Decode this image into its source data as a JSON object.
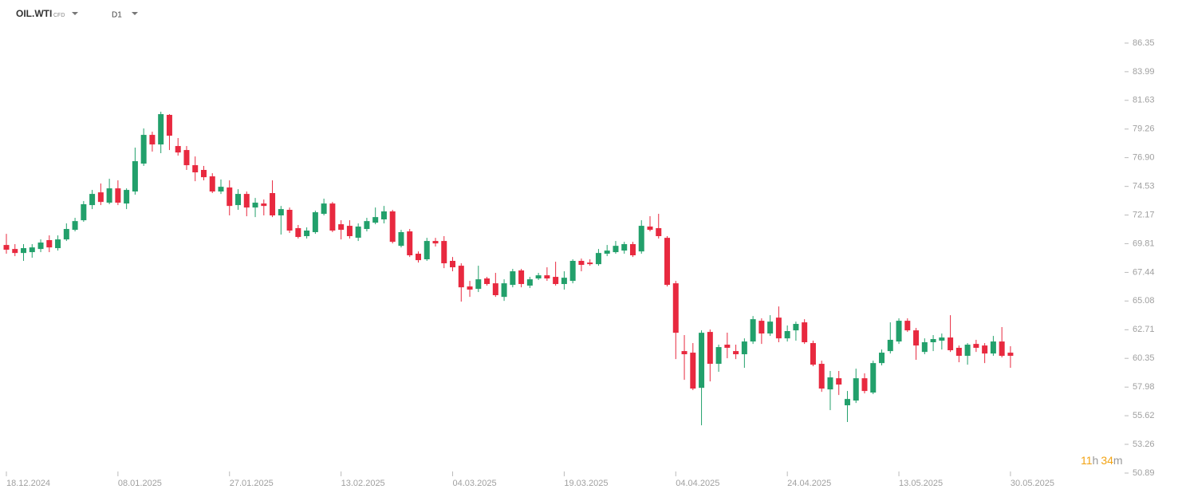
{
  "header": {
    "symbol": "OIL.WTI",
    "symbol_tag": "CFD",
    "timeframe": "D1"
  },
  "countdown": {
    "hours": "11",
    "hours_unit": "h",
    "minutes": "34",
    "minutes_unit": "m"
  },
  "chart_data": {
    "type": "candlestick",
    "up_color": "#22a06b",
    "down_color": "#e8293f",
    "ylim": [
      50.89,
      86.35
    ],
    "yticks": [
      86.35,
      83.99,
      81.63,
      79.26,
      {
        "value": 76.9,
        "label": "76.90"
      },
      74.53,
      72.17,
      69.81,
      67.44,
      65.08,
      62.71,
      60.35,
      57.98,
      55.62,
      53.26,
      50.89
    ],
    "grid": false,
    "categories": [
      "18.12.2024",
      null,
      null,
      null,
      null,
      null,
      null,
      null,
      null,
      null,
      null,
      null,
      null,
      "08.01.2025",
      null,
      null,
      null,
      null,
      null,
      null,
      null,
      null,
      null,
      null,
      null,
      null,
      "27.01.2025",
      null,
      null,
      null,
      null,
      null,
      null,
      null,
      null,
      null,
      null,
      null,
      null,
      "13.02.2025",
      null,
      null,
      null,
      null,
      null,
      null,
      null,
      null,
      null,
      null,
      null,
      null,
      "04.03.2025",
      null,
      null,
      null,
      null,
      null,
      null,
      null,
      null,
      null,
      null,
      null,
      null,
      "19.03.2025",
      null,
      null,
      null,
      null,
      null,
      null,
      null,
      null,
      null,
      null,
      null,
      null,
      "04.04.2025",
      null,
      null,
      null,
      null,
      null,
      null,
      null,
      null,
      null,
      null,
      null,
      null,
      "24.04.2025",
      null,
      null,
      null,
      null,
      null,
      null,
      null,
      null,
      null,
      null,
      null,
      null,
      "13.05.2025",
      null,
      null,
      null,
      null,
      null,
      null,
      null,
      null,
      null,
      null,
      null,
      null,
      "30.05.2025"
    ],
    "open": [
      69.7,
      69.37,
      69.04,
      69.11,
      69.37,
      70.1,
      69.44,
      70.16,
      70.95,
      71.74,
      72.99,
      74.04,
      73.19,
      74.37,
      73.12,
      74.11,
      76.41,
      78.78,
      77.99,
      80.43,
      77.86,
      77.53,
      76.28,
      75.89,
      75.36,
      74.11,
      74.44,
      72.99,
      73.91,
      72.79,
      73.12,
      73.98,
      72.14,
      72.6,
      71.09,
      70.43,
      70.76,
      72.27,
      73.12,
      71.41,
      71.28,
      70.3,
      71.02,
      71.54,
      71.81,
      72.47,
      69.63,
      70.82,
      68.98,
      68.52,
      70.03,
      70.03,
      68.39,
      67.99,
      66.28,
      66.08,
      66.94,
      66.54,
      65.42,
      66.41,
      67.6,
      66.35,
      66.94,
      67.2,
      67.07,
      66.48,
      66.74,
      68.39,
      68.25,
      68.12,
      68.98,
      69.11,
      69.24,
      69.77,
      69.17,
      71.22,
      71.09,
      70.29,
      66.54,
      60.95,
      60.82,
      57.92,
      62.53,
      59.9,
      61.48,
      60.95,
      60.69,
      61.74,
      63.45,
      62.4,
      63.71,
      62.0,
      62.66,
      63.32,
      61.61,
      59.9,
      57.79,
      58.71,
      56.48,
      56.87,
      58.71,
      57.53,
      59.96,
      60.95,
      61.74,
      63.45,
      62.66,
      60.88,
      61.68,
      61.81,
      62.07,
      61.22,
      60.56,
      61.54,
      61.41,
      60.75,
      61.74,
      60.82
    ],
    "high": [
      70.62,
      69.77,
      69.77,
      69.77,
      70.16,
      70.49,
      70.49,
      71.48,
      71.94,
      73.32,
      74.24,
      74.77,
      75.16,
      75.03,
      74.37,
      77.73,
      79.31,
      79.04,
      80.69,
      80.49,
      78.52,
      77.86,
      77.0,
      76.22,
      75.62,
      75.1,
      75.03,
      74.3,
      74.11,
      73.58,
      73.45,
      75.03,
      72.92,
      72.79,
      71.35,
      71.15,
      72.53,
      73.52,
      73.25,
      71.74,
      71.74,
      71.48,
      71.94,
      72.79,
      72.92,
      72.6,
      70.95,
      71.02,
      69.17,
      70.29,
      70.29,
      70.43,
      68.71,
      68.19,
      66.74,
      67.99,
      67.07,
      67.4,
      66.87,
      67.73,
      67.73,
      67.07,
      67.4,
      67.86,
      68.32,
      67.53,
      68.52,
      68.58,
      68.52,
      69.37,
      69.7,
      70.03,
      69.96,
      69.96,
      71.74,
      72.07,
      72.27,
      70.43,
      66.74,
      62.27,
      61.61,
      62.66,
      62.73,
      61.48,
      62.47,
      61.48,
      62.0,
      63.84,
      63.65,
      63.91,
      64.63,
      63.06,
      63.38,
      63.58,
      61.81,
      60.16,
      59.31,
      59.31,
      57.66,
      59.5,
      59.11,
      60.16,
      61.08,
      63.32,
      63.65,
      63.65,
      62.86,
      62.0,
      62.27,
      62.4,
      63.91,
      61.41,
      61.61,
      61.88,
      61.61,
      62.2,
      62.93,
      61.35
    ],
    "low": [
      68.98,
      68.78,
      68.39,
      68.65,
      69.11,
      69.11,
      69.24,
      70.03,
      70.82,
      71.61,
      72.66,
      72.99,
      73.06,
      72.99,
      72.66,
      73.85,
      76.22,
      77.4,
      77.27,
      77.53,
      77.07,
      75.89,
      74.96,
      75.03,
      73.98,
      73.91,
      72.14,
      72.6,
      72.07,
      72.0,
      72.14,
      72.0,
      70.56,
      70.69,
      70.23,
      70.23,
      70.62,
      72.14,
      70.76,
      70.16,
      70.23,
      70.03,
      70.82,
      71.41,
      71.48,
      69.83,
      69.5,
      68.71,
      68.25,
      68.39,
      69.57,
      67.79,
      67.53,
      65.03,
      65.42,
      65.82,
      66.35,
      65.42,
      65.09,
      66.21,
      66.21,
      66.15,
      66.81,
      66.74,
      66.35,
      66.02,
      66.54,
      67.53,
      67.99,
      67.99,
      68.78,
      68.98,
      68.98,
      68.71,
      68.98,
      70.82,
      70.23,
      66.28,
      60.29,
      58.58,
      57.73,
      54.83,
      58.45,
      59.24,
      60.36,
      60.29,
      59.57,
      61.54,
      61.54,
      62.2,
      61.68,
      61.74,
      61.81,
      61.54,
      59.7,
      57.59,
      56.08,
      57.33,
      55.1,
      56.67,
      57.46,
      57.4,
      59.77,
      60.75,
      61.54,
      62.53,
      60.23,
      60.69,
      60.95,
      61.08,
      60.88,
      60.03,
      59.83,
      60.88,
      59.96,
      60.56,
      60.43,
      59.57
    ],
    "close": [
      69.31,
      69.04,
      69.44,
      69.5,
      69.9,
      69.5,
      70.16,
      71.02,
      71.67,
      73.06,
      73.91,
      73.25,
      74.37,
      73.19,
      74.24,
      76.61,
      78.78,
      77.99,
      80.49,
      78.71,
      77.33,
      76.28,
      75.69,
      75.29,
      74.11,
      74.5,
      72.92,
      73.91,
      72.79,
      73.19,
      72.92,
      72.14,
      72.66,
      70.89,
      70.36,
      70.89,
      72.4,
      73.12,
      70.89,
      70.95,
      70.43,
      71.22,
      71.67,
      72.0,
      72.47,
      69.96,
      70.76,
      68.85,
      68.45,
      70.03,
      69.83,
      68.19,
      67.86,
      66.21,
      66.02,
      66.87,
      66.48,
      65.56,
      66.54,
      67.53,
      66.48,
      66.87,
      67.2,
      66.94,
      66.48,
      67.0,
      68.39,
      68.06,
      68.12,
      69.04,
      69.24,
      69.63,
      69.77,
      68.85,
      71.28,
      70.95,
      70.43,
      66.41,
      62.46,
      60.69,
      57.86,
      62.46,
      59.9,
      61.28,
      61.22,
      60.69,
      61.74,
      63.58,
      62.4,
      63.38,
      62.0,
      62.6,
      63.19,
      61.68,
      59.83,
      57.86,
      58.78,
      58.19,
      57.0,
      58.71,
      57.66,
      59.96,
      60.82,
      61.88,
      63.45,
      62.66,
      61.41,
      61.68,
      61.94,
      62.07,
      61.02,
      60.56,
      61.48,
      61.22,
      60.75,
      61.74,
      60.56,
      60.56
    ]
  }
}
